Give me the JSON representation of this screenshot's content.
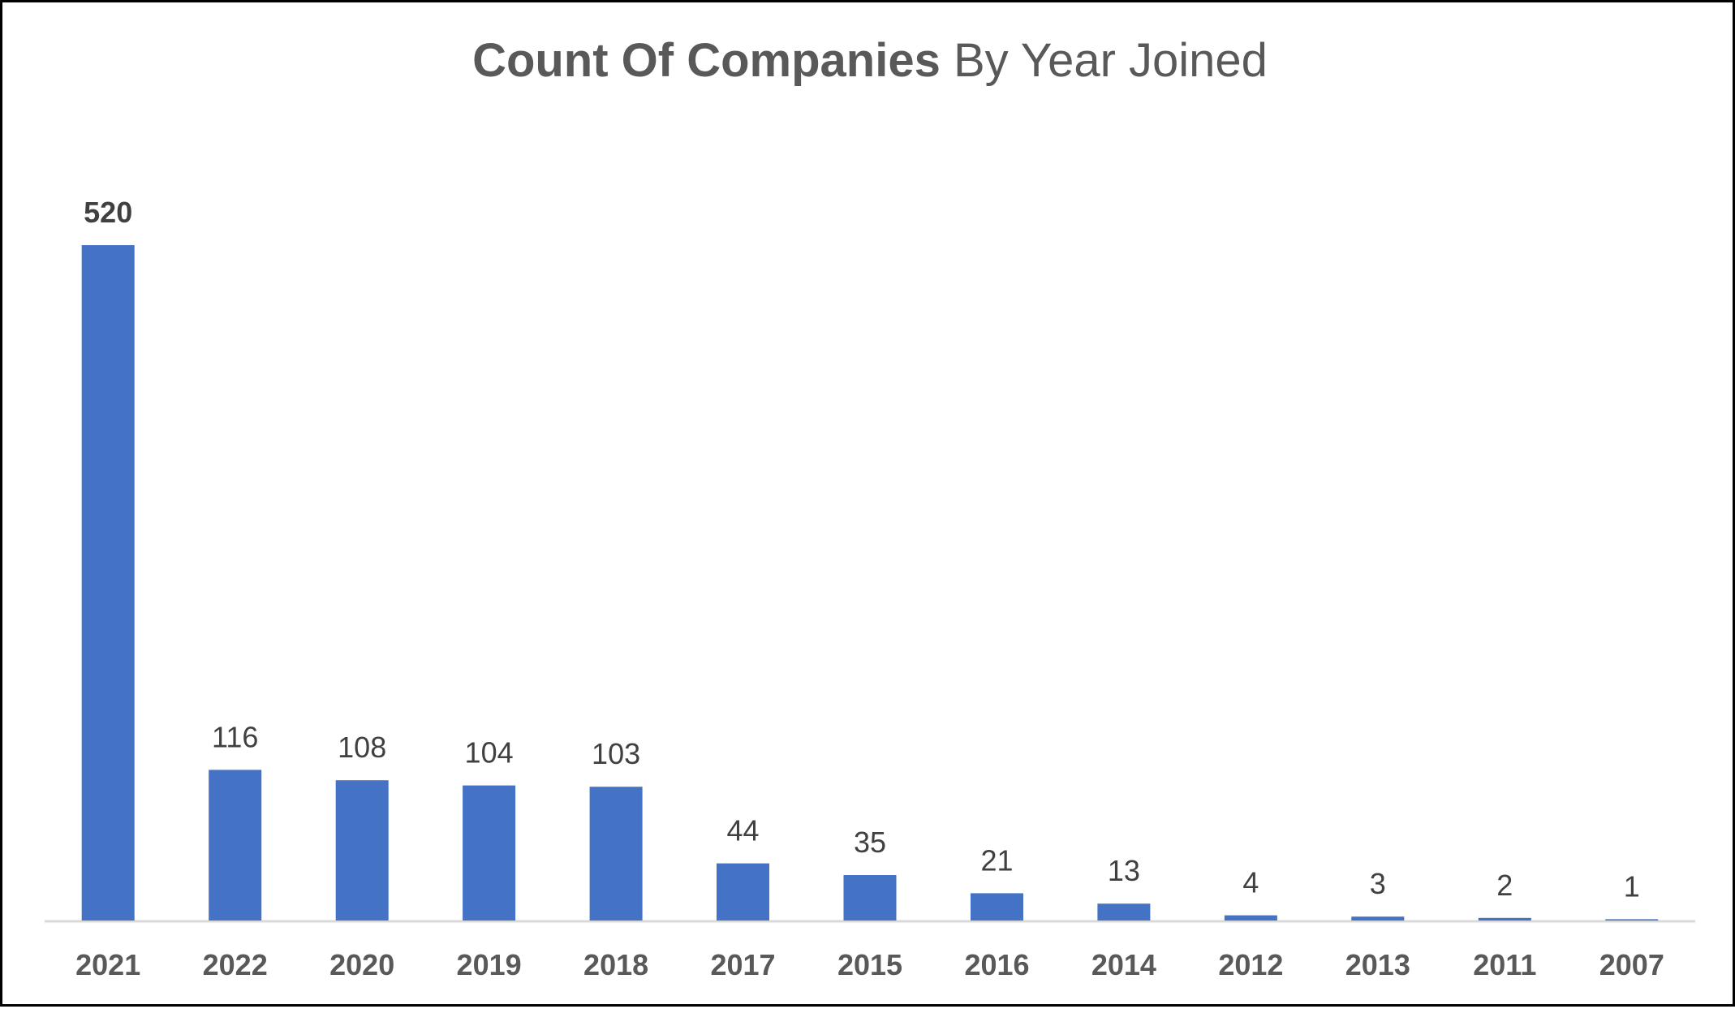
{
  "chart_data": {
    "type": "bar",
    "title_bold": "Count Of Companies",
    "title_rest": "By Year Joined",
    "categories": [
      "2021",
      "2022",
      "2020",
      "2019",
      "2018",
      "2017",
      "2015",
      "2016",
      "2014",
      "2012",
      "2013",
      "2011",
      "2007"
    ],
    "values": [
      520,
      116,
      108,
      104,
      103,
      44,
      35,
      21,
      13,
      4,
      3,
      2,
      1
    ],
    "ylim": [
      0,
      520
    ],
    "grid": false,
    "legend": "none",
    "colors": {
      "bar": "#4472C4",
      "text": "#595959",
      "label": "#404040",
      "axis": "#D9D9D9"
    }
  }
}
